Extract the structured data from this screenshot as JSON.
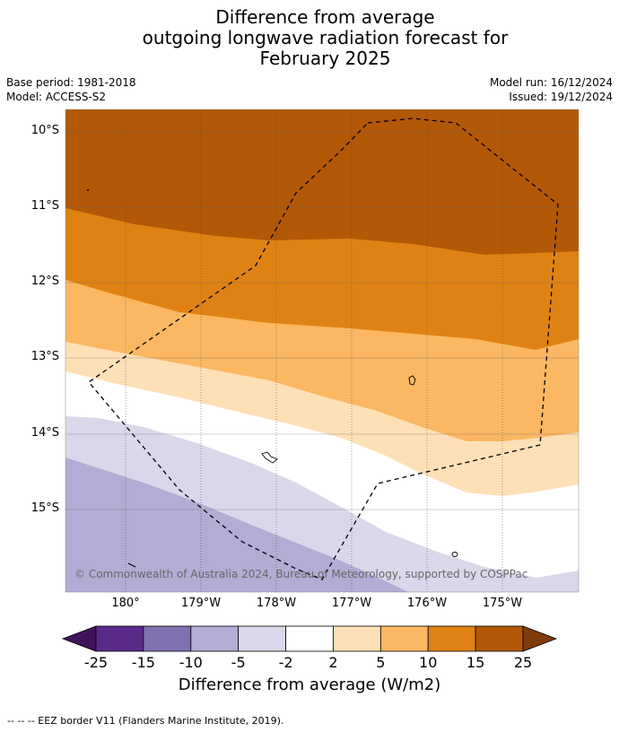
{
  "title": {
    "line1": "Difference from average",
    "line2": "outgoing longwave radiation forecast for",
    "line3": "February 2025"
  },
  "meta": {
    "base_period": "Base period: 1981-2018",
    "model": "Model: ACCESS-S2",
    "model_run": "Model run: 16/12/2024",
    "issued": "Issued: 19/12/2024"
  },
  "map": {
    "latitude_labels": [
      "10°S",
      "11°S",
      "12°S",
      "13°S",
      "14°S",
      "15°S"
    ],
    "longitude_labels": [
      "180°",
      "179°W",
      "178°W",
      "177°W",
      "176°W",
      "175°W"
    ],
    "copyright": "© Commonwealth of Australia 2024, Bureau of Meteorology, supported by COSPPac"
  },
  "colorbar": {
    "ticks": [
      "-25",
      "-15",
      "-10",
      "-5",
      "-2",
      "2",
      "5",
      "10",
      "15",
      "25"
    ],
    "colors": [
      "#3f1359",
      "#5a2a8a",
      "#8070b0",
      "#b3acd4",
      "#d9d8ea",
      "#ffffff",
      "#fee0b6",
      "#fbb762",
      "#e08213",
      "#b35807",
      "#7f3b08"
    ],
    "title": "Difference from average (W/m2)"
  },
  "footnote": "--  --  -- EEZ border V11 (Flanders Marine Institute, 2019)."
}
